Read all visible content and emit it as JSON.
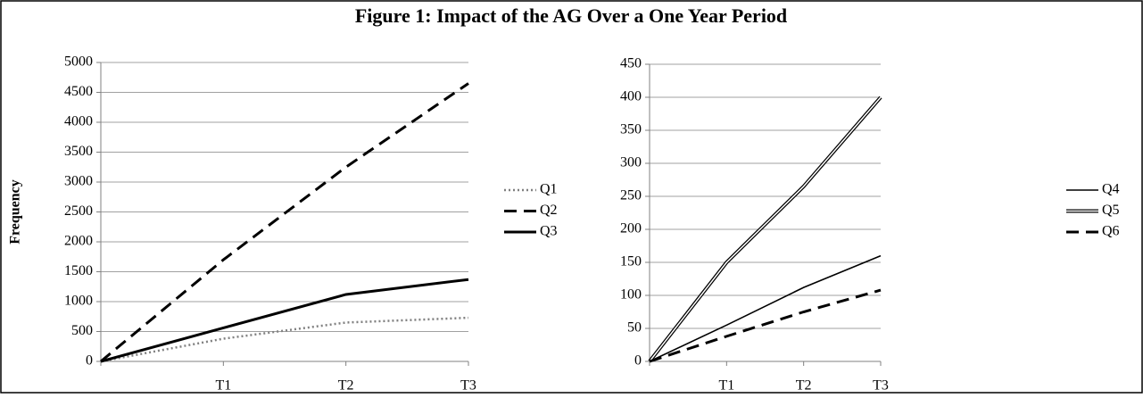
{
  "title": "Figure 1: Impact of the AG Over a One Year Period",
  "chart_data": [
    {
      "type": "line",
      "y_label": "Frequency",
      "categories": [
        null,
        "T1",
        "T2",
        "T3"
      ],
      "ylim": [
        0,
        5000
      ],
      "yticks": [
        0,
        500,
        1000,
        1500,
        2000,
        2500,
        3000,
        3500,
        4000,
        4500,
        5000
      ],
      "grid": true,
      "series": [
        {
          "name": "Q1",
          "color": "#808080",
          "style": "dotted",
          "values": [
            0,
            380,
            650,
            730
          ]
        },
        {
          "name": "Q2",
          "color": "#000000",
          "style": "dashed",
          "values": [
            0,
            1700,
            3250,
            4650
          ]
        },
        {
          "name": "Q3",
          "color": "#000000",
          "style": "solid-thick",
          "values": [
            0,
            560,
            1120,
            1370
          ]
        }
      ]
    },
    {
      "type": "line",
      "categories": [
        null,
        "T1",
        "T2",
        "T3"
      ],
      "ylim": [
        0,
        450
      ],
      "yticks": [
        0,
        50,
        100,
        150,
        200,
        250,
        300,
        350,
        400,
        450
      ],
      "grid": true,
      "series": [
        {
          "name": "Q4",
          "color": "#000000",
          "style": "solid",
          "values": [
            0,
            55,
            112,
            160
          ]
        },
        {
          "name": "Q5",
          "color": "#000000",
          "style": "double",
          "values": [
            0,
            150,
            265,
            400
          ]
        },
        {
          "name": "Q6",
          "color": "#000000",
          "style": "dashed",
          "values": [
            0,
            38,
            75,
            108
          ]
        }
      ]
    }
  ]
}
